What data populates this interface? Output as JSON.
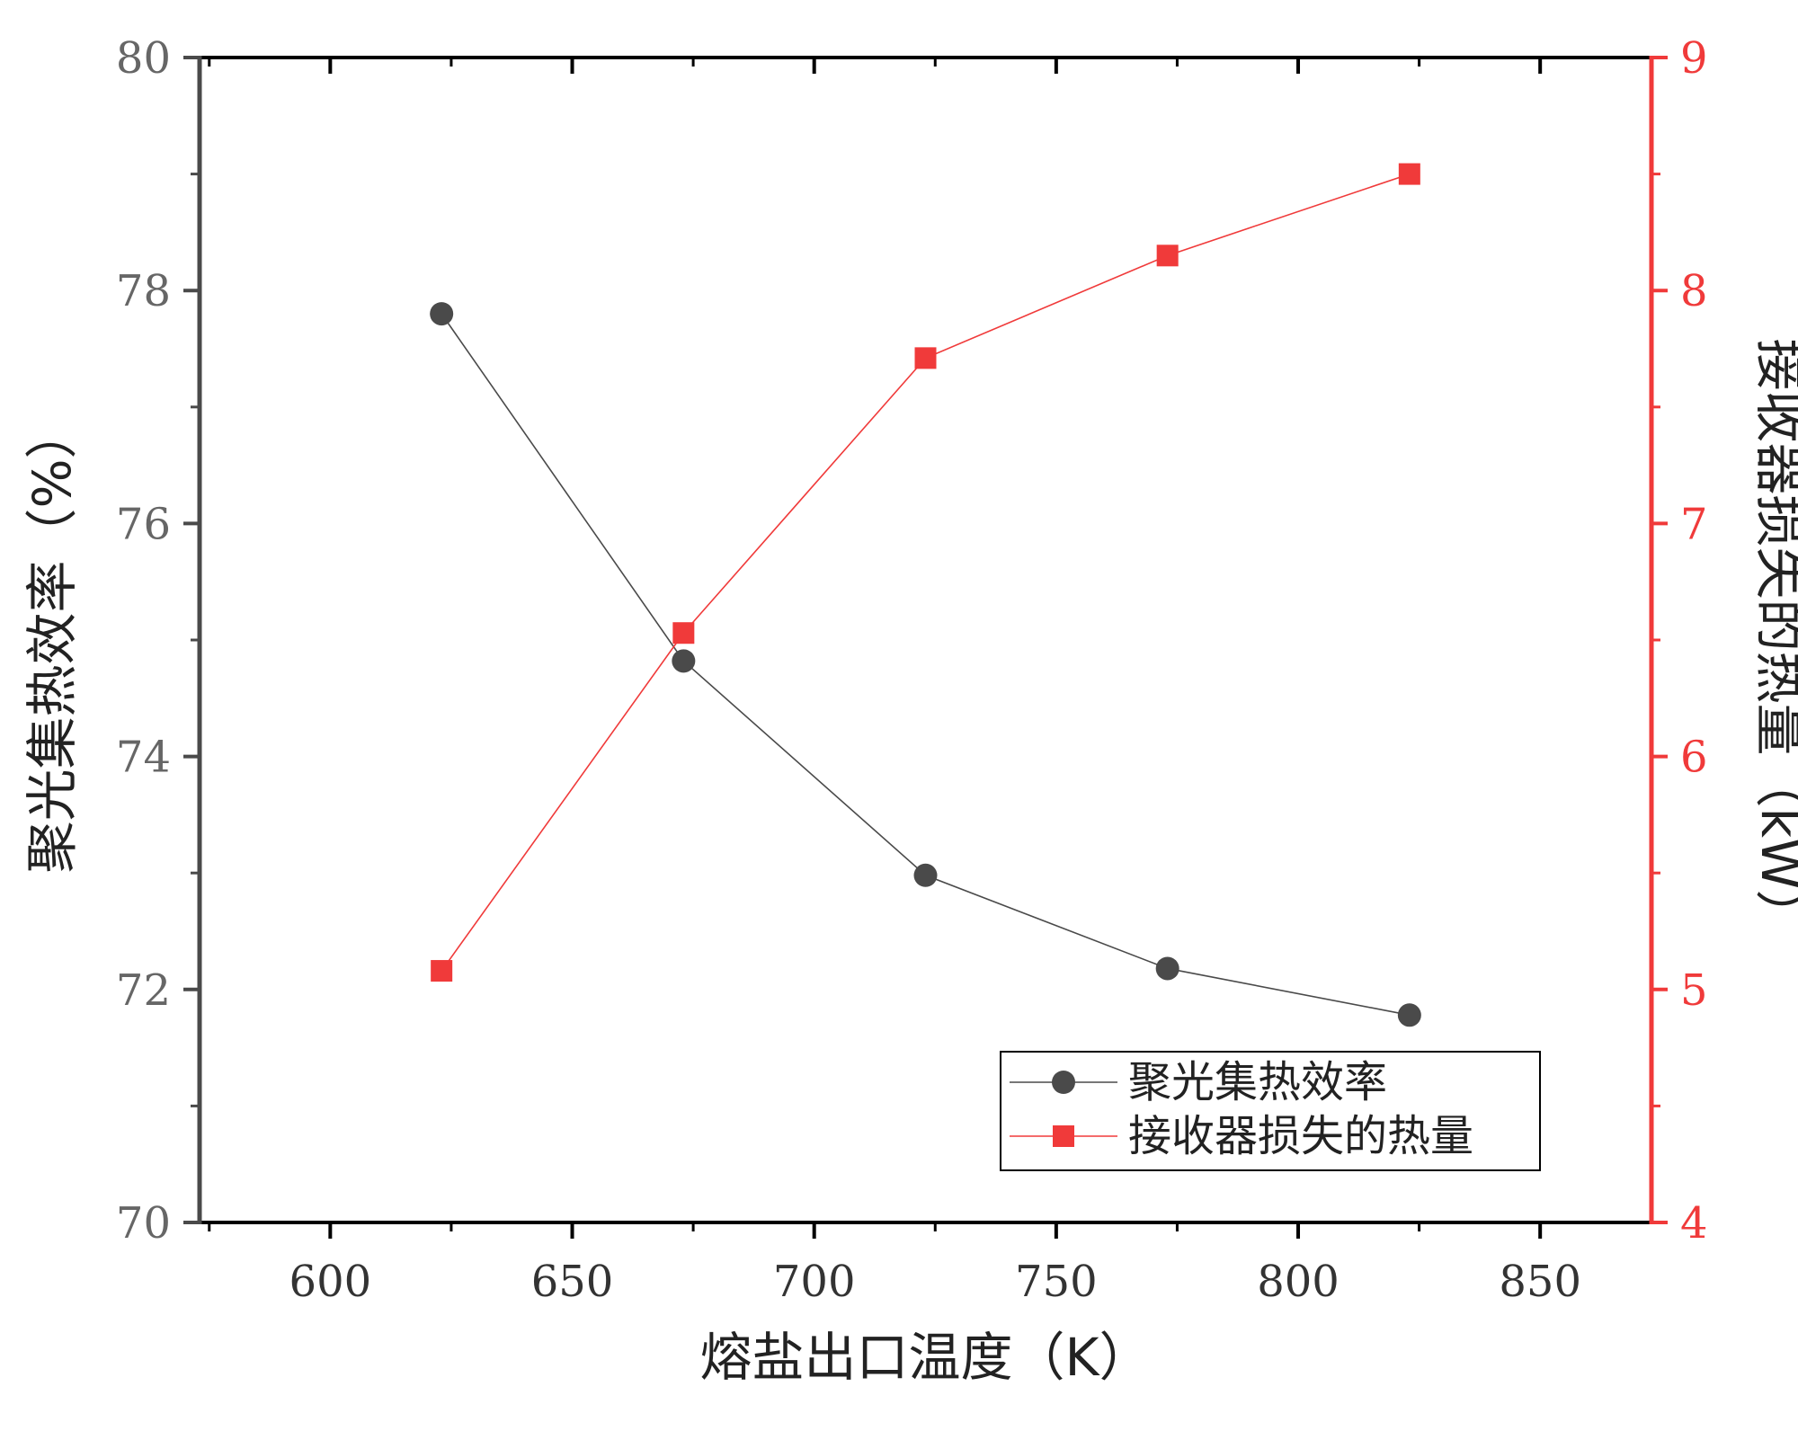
{
  "chart_data": {
    "type": "line",
    "title": "",
    "xlabel": "熔盐出口温度（K）",
    "ylabel_left": "聚光集热效率（%）",
    "ylabel_right": "接收器损失的热量（kW）",
    "xlim": [
      573,
      873
    ],
    "ylim_left": [
      70,
      80
    ],
    "ylim_right": [
      4,
      9
    ],
    "x_ticks": [
      600,
      650,
      700,
      750,
      800,
      850
    ],
    "y_ticks_left": [
      70,
      72,
      74,
      76,
      78,
      80
    ],
    "y_ticks_right": [
      4,
      5,
      6,
      7,
      8,
      9
    ],
    "grid": false,
    "legend_position": "bottom-right",
    "colors": {
      "efficiency": "#4a4a4a",
      "heat_loss": "#f03a3a",
      "axis_left": "#4a4a4a",
      "axis_right": "#f03a3a"
    },
    "series": [
      {
        "name": "聚光集热效率",
        "axis": "left",
        "marker": "circle",
        "x": [
          623,
          673,
          723,
          773,
          823
        ],
        "y": [
          77.8,
          74.82,
          72.98,
          72.18,
          71.78
        ]
      },
      {
        "name": "接收器损失的热量",
        "axis": "right",
        "marker": "square",
        "x": [
          623,
          673,
          723,
          773,
          823
        ],
        "y": [
          5.08,
          6.53,
          7.71,
          8.15,
          8.5
        ]
      }
    ]
  }
}
